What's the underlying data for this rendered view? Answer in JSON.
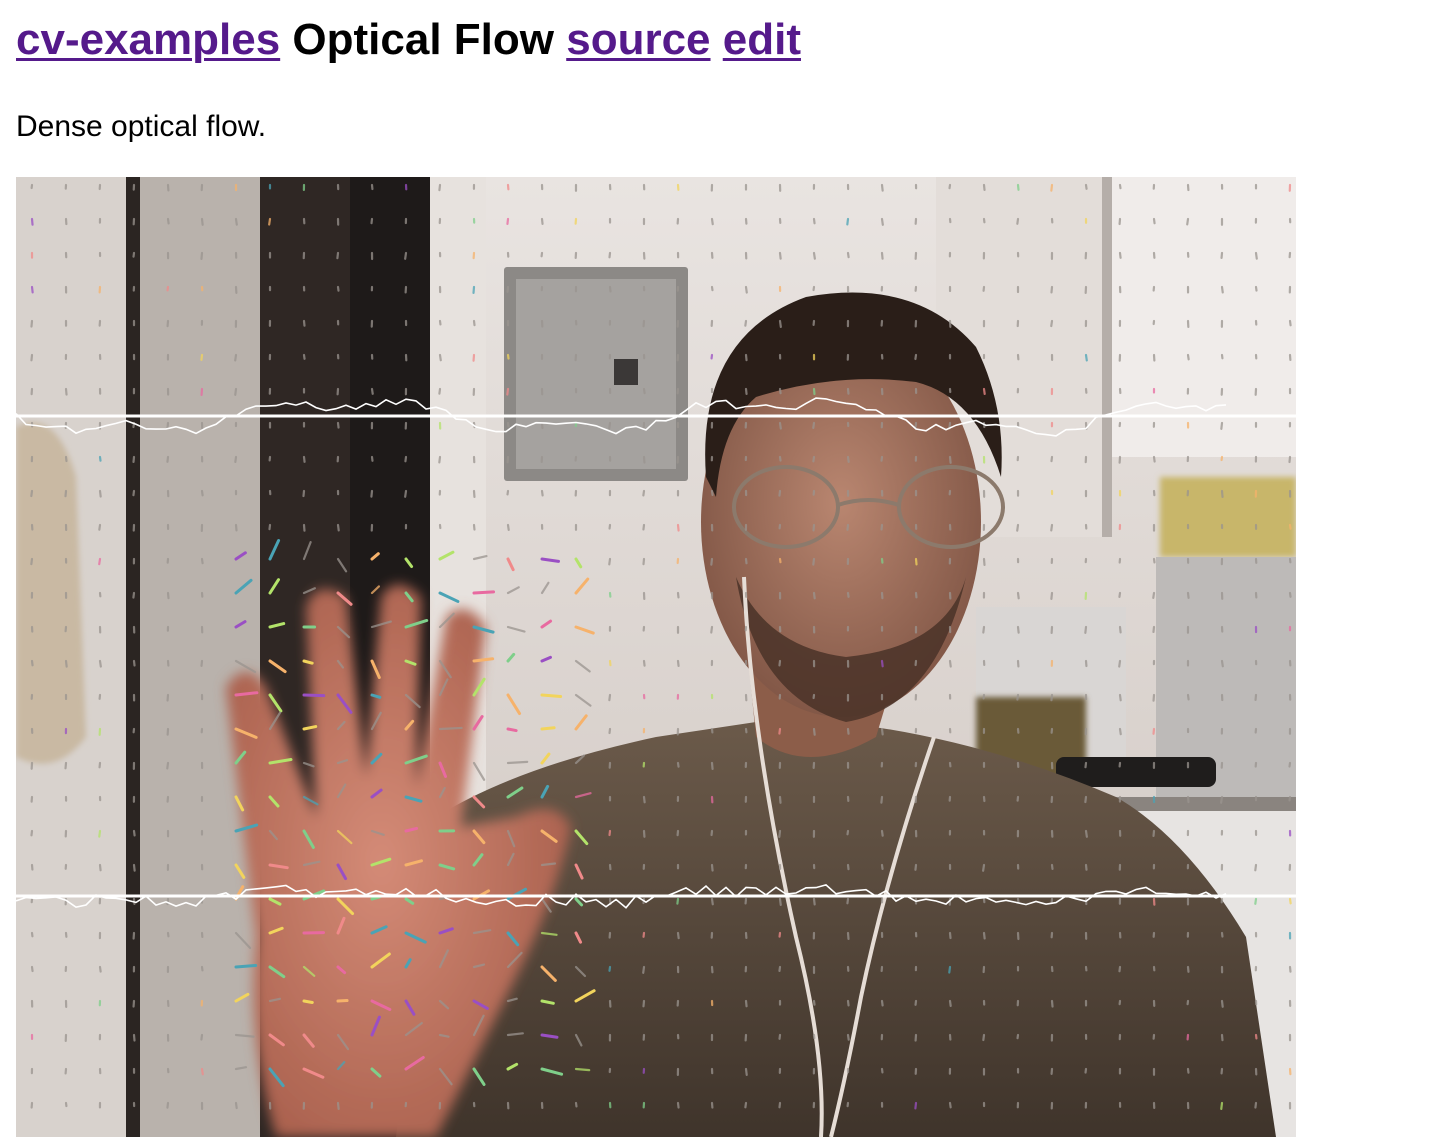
{
  "header": {
    "home_link": "cv-examples",
    "title": "Optical Flow",
    "source_link": "source",
    "edit_link": "edit"
  },
  "description": "Dense optical flow.",
  "colors": {
    "link": "#551A8B",
    "overlay_line": "#ffffff"
  },
  "video": {
    "content": "webcam frame with optical flow vector field overlay"
  }
}
